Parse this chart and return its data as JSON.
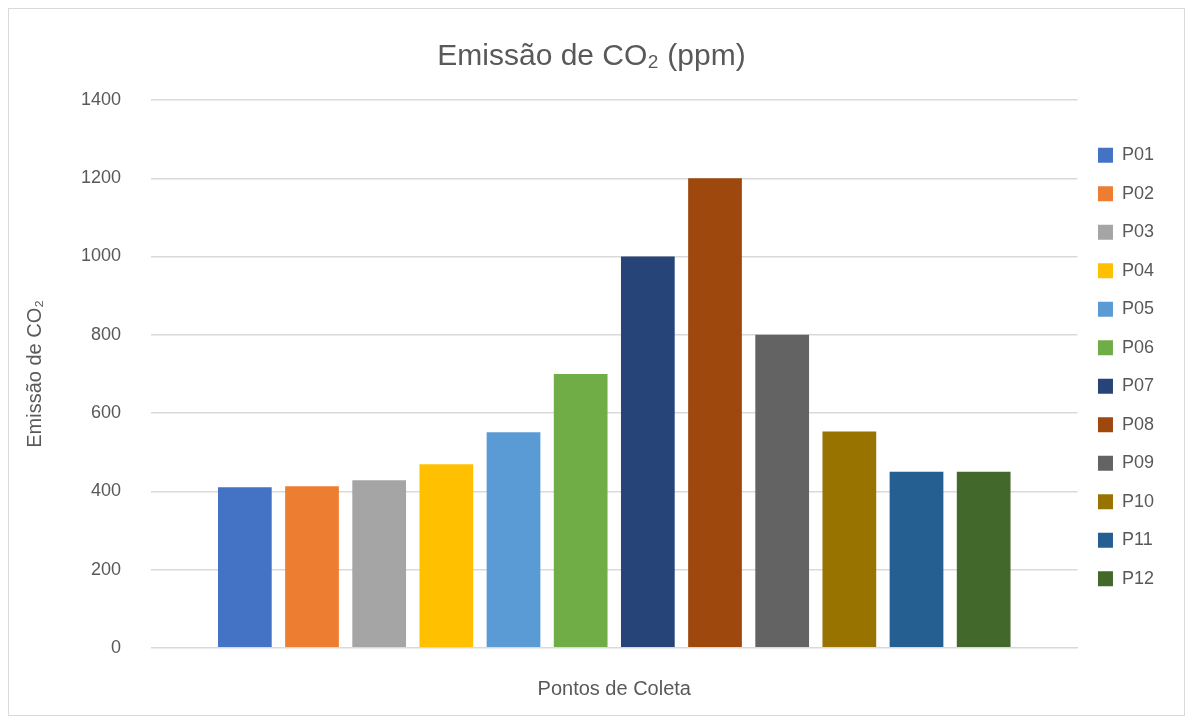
{
  "chart_data": {
    "type": "bar",
    "title": "Emissão de CO₂ (ppm)",
    "xlabel": "Pontos de Coleta",
    "ylabel": "Emissão de CO₂",
    "categories": [
      null
    ],
    "series": [
      {
        "name": "P01",
        "color": "#4472c4",
        "values": [
          410
        ]
      },
      {
        "name": "P02",
        "color": "#ed7d31",
        "values": [
          413
        ]
      },
      {
        "name": "P03",
        "color": "#a5a5a5",
        "values": [
          428
        ]
      },
      {
        "name": "P04",
        "color": "#ffc000",
        "values": [
          469
        ]
      },
      {
        "name": "P05",
        "color": "#5b9bd5",
        "values": [
          551
        ]
      },
      {
        "name": "P06",
        "color": "#70ad47",
        "values": [
          700
        ]
      },
      {
        "name": "P07",
        "color": "#264478",
        "values": [
          1000
        ]
      },
      {
        "name": "P08",
        "color": "#9e480e",
        "values": [
          1200
        ]
      },
      {
        "name": "P09",
        "color": "#636363",
        "values": [
          800
        ]
      },
      {
        "name": "P10",
        "color": "#997300",
        "values": [
          553
        ]
      },
      {
        "name": "P11",
        "color": "#255e91",
        "values": [
          450
        ]
      },
      {
        "name": "P12",
        "color": "#43682b",
        "values": [
          450
        ]
      }
    ],
    "ylim": [
      0,
      1400
    ],
    "yticks": [
      0,
      200,
      400,
      600,
      800,
      1000,
      1200,
      1400
    ],
    "grid": "y",
    "legend": "right"
  }
}
